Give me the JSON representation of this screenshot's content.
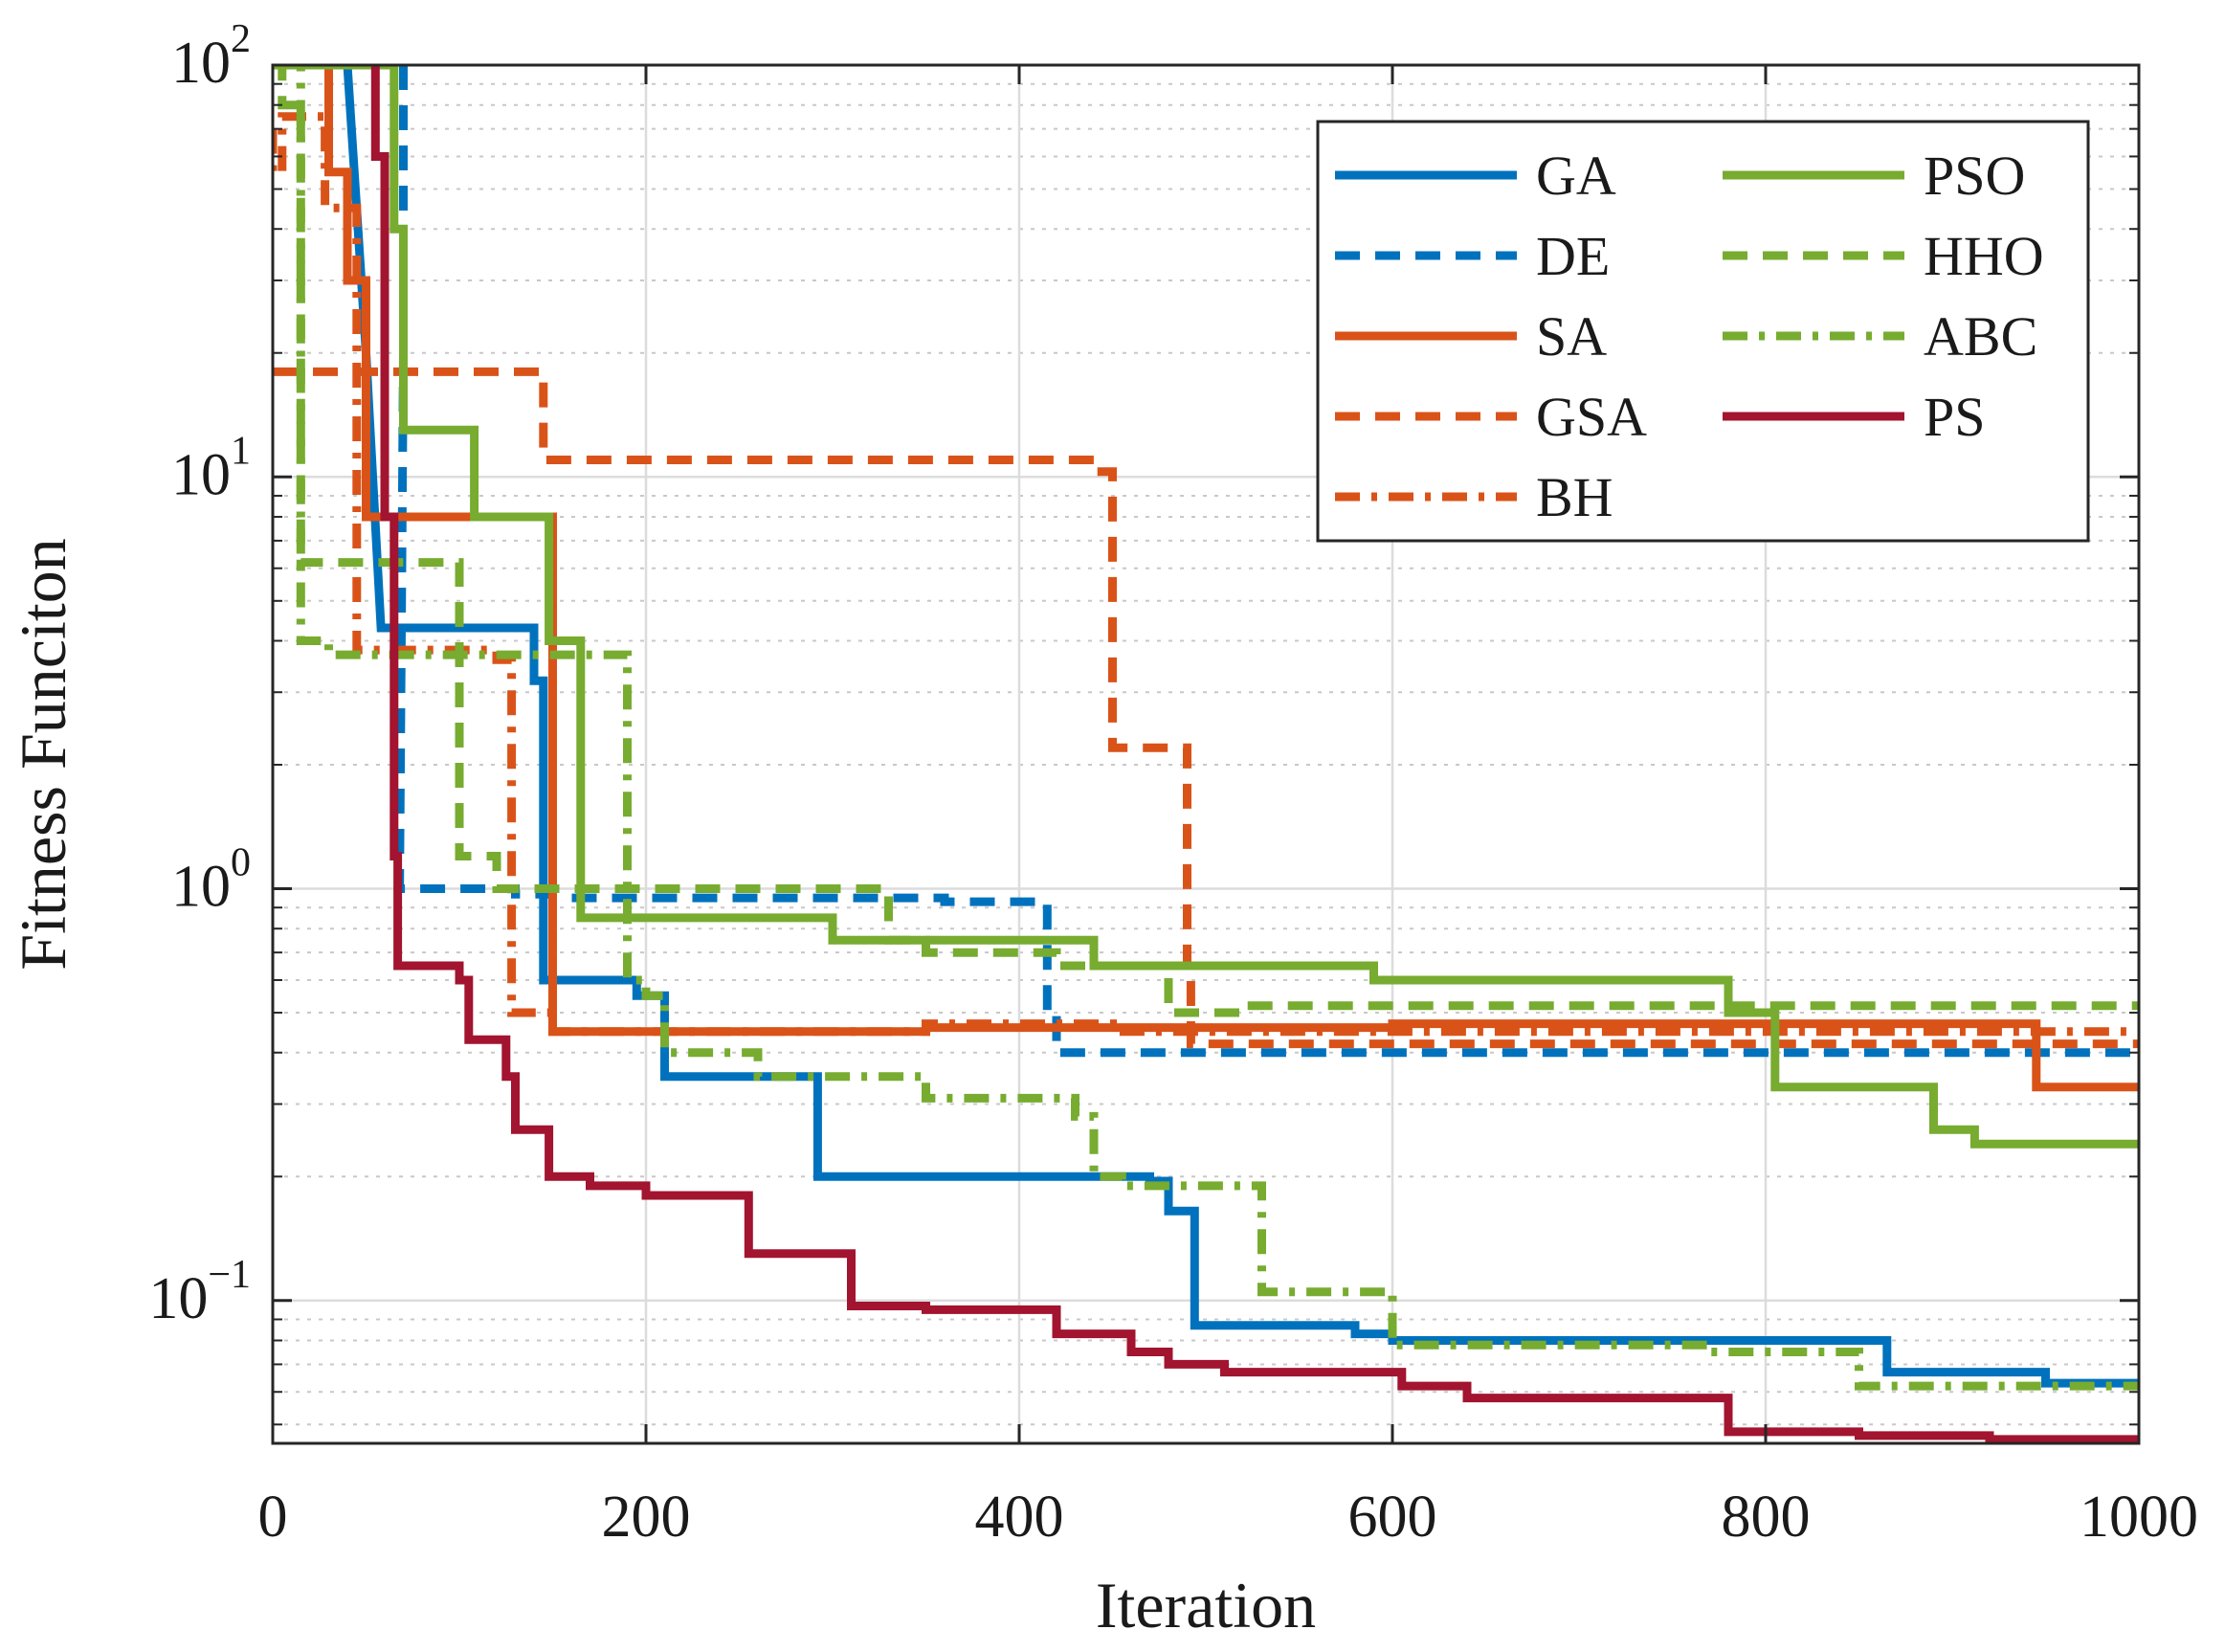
{
  "chart_data": {
    "type": "line",
    "title": "",
    "xlabel": "Iteration",
    "ylabel": "Fitness Funciton",
    "xlim": [
      0,
      1000
    ],
    "ylim": [
      0.045,
      100
    ],
    "yscale": "log",
    "grid": true,
    "legend_position": "top-right",
    "x_ticks": [
      {
        "value": 0,
        "label": "0"
      },
      {
        "value": 200,
        "label": "200"
      },
      {
        "value": 400,
        "label": "400"
      },
      {
        "value": 600,
        "label": "600"
      },
      {
        "value": 800,
        "label": "800"
      },
      {
        "value": 1000,
        "label": "1000"
      }
    ],
    "y_ticks": [
      {
        "value": 100,
        "base": "10",
        "exponent": "2"
      },
      {
        "value": 10,
        "base": "10",
        "exponent": "1"
      },
      {
        "value": 1,
        "base": "10",
        "exponent": "0"
      },
      {
        "value": 0.1,
        "base": "10",
        "exponent": "−1"
      }
    ],
    "series": [
      {
        "name": "GA",
        "color": "#0072BD",
        "dash": "solid",
        "points": [
          [
            40,
            100
          ],
          [
            50,
            20
          ],
          [
            58,
            4.3
          ],
          [
            140,
            4.3
          ],
          [
            140,
            3.2
          ],
          [
            145,
            3.2
          ],
          [
            145,
            0.6
          ],
          [
            195,
            0.6
          ],
          [
            195,
            0.55
          ],
          [
            210,
            0.55
          ],
          [
            210,
            0.35
          ],
          [
            292,
            0.35
          ],
          [
            292,
            0.2
          ],
          [
            470,
            0.2
          ],
          [
            470,
            0.195
          ],
          [
            480,
            0.195
          ],
          [
            480,
            0.165
          ],
          [
            494,
            0.165
          ],
          [
            494,
            0.087
          ],
          [
            580,
            0.087
          ],
          [
            580,
            0.083
          ],
          [
            600,
            0.083
          ],
          [
            600,
            0.08
          ],
          [
            865,
            0.08
          ],
          [
            865,
            0.067
          ],
          [
            950,
            0.067
          ],
          [
            950,
            0.063
          ],
          [
            1000,
            0.063
          ]
        ]
      },
      {
        "name": "DE",
        "color": "#0072BD",
        "dash": "dashed",
        "points": [
          [
            70,
            100
          ],
          [
            70,
            20
          ],
          [
            68,
            1.0
          ],
          [
            130,
            1.0
          ],
          [
            130,
            0.97
          ],
          [
            150,
            0.97
          ],
          [
            150,
            0.95
          ],
          [
            360,
            0.95
          ],
          [
            360,
            0.93
          ],
          [
            415,
            0.93
          ],
          [
            415,
            0.5
          ],
          [
            420,
            0.5
          ],
          [
            420,
            0.4
          ],
          [
            1000,
            0.4
          ]
        ]
      },
      {
        "name": "SA",
        "color": "#D95319",
        "dash": "solid",
        "points": [
          [
            30,
            100
          ],
          [
            30,
            55
          ],
          [
            40,
            55
          ],
          [
            40,
            30
          ],
          [
            50,
            30
          ],
          [
            50,
            8
          ],
          [
            150,
            8
          ],
          [
            150,
            0.45
          ],
          [
            350,
            0.45
          ],
          [
            350,
            0.46
          ],
          [
            600,
            0.46
          ],
          [
            600,
            0.47
          ],
          [
            945,
            0.47
          ],
          [
            945,
            0.33
          ],
          [
            1000,
            0.33
          ]
        ]
      },
      {
        "name": "GSA",
        "color": "#D95319",
        "dash": "dashed",
        "points": [
          [
            0,
            18
          ],
          [
            145,
            18
          ],
          [
            145,
            11
          ],
          [
            440,
            11
          ],
          [
            440,
            10.3
          ],
          [
            450,
            10.3
          ],
          [
            450,
            2.2
          ],
          [
            490,
            2.2
          ],
          [
            490,
            0.6
          ],
          [
            492,
            0.6
          ],
          [
            492,
            0.42
          ],
          [
            1000,
            0.42
          ]
        ]
      },
      {
        "name": "BH",
        "color": "#D95319",
        "dash": "dashdot",
        "points": [
          [
            0,
            70
          ],
          [
            0,
            55
          ],
          [
            5,
            55
          ],
          [
            5,
            75
          ],
          [
            28,
            75
          ],
          [
            28,
            45
          ],
          [
            45,
            45
          ],
          [
            45,
            3.8
          ],
          [
            120,
            3.8
          ],
          [
            120,
            3.6
          ],
          [
            128,
            3.6
          ],
          [
            128,
            0.5
          ],
          [
            150,
            0.5
          ],
          [
            150,
            0.45
          ],
          [
            350,
            0.45
          ],
          [
            350,
            0.47
          ],
          [
            450,
            0.47
          ],
          [
            450,
            0.45
          ],
          [
            1000,
            0.45
          ]
        ]
      },
      {
        "name": "PSO",
        "color": "#77AC30",
        "dash": "solid",
        "points": [
          [
            0,
            100
          ],
          [
            5,
            100
          ],
          [
            5,
            100
          ],
          [
            65,
            100
          ],
          [
            65,
            40
          ],
          [
            70,
            40
          ],
          [
            70,
            13
          ],
          [
            108,
            13
          ],
          [
            108,
            8
          ],
          [
            148,
            8
          ],
          [
            148,
            4
          ],
          [
            165,
            4
          ],
          [
            165,
            0.85
          ],
          [
            300,
            0.85
          ],
          [
            300,
            0.75
          ],
          [
            440,
            0.75
          ],
          [
            440,
            0.65
          ],
          [
            590,
            0.65
          ],
          [
            590,
            0.6
          ],
          [
            780,
            0.6
          ],
          [
            780,
            0.5
          ],
          [
            805,
            0.5
          ],
          [
            805,
            0.33
          ],
          [
            890,
            0.33
          ],
          [
            890,
            0.26
          ],
          [
            912,
            0.26
          ],
          [
            912,
            0.24
          ],
          [
            1000,
            0.24
          ]
        ]
      },
      {
        "name": "HHO",
        "color": "#77AC30",
        "dash": "dashed",
        "points": [
          [
            0,
            100
          ],
          [
            5,
            100
          ],
          [
            5,
            80
          ],
          [
            15,
            80
          ],
          [
            15,
            6.2
          ],
          [
            100,
            6.2
          ],
          [
            100,
            1.2
          ],
          [
            120,
            1.2
          ],
          [
            120,
            1.0
          ],
          [
            330,
            1.0
          ],
          [
            330,
            0.75
          ],
          [
            350,
            0.75
          ],
          [
            350,
            0.7
          ],
          [
            420,
            0.7
          ],
          [
            420,
            0.65
          ],
          [
            480,
            0.65
          ],
          [
            480,
            0.5
          ],
          [
            520,
            0.5
          ],
          [
            520,
            0.52
          ],
          [
            1000,
            0.52
          ]
        ]
      },
      {
        "name": "ABC",
        "color": "#77AC30",
        "dash": "dashdot",
        "points": [
          [
            5,
            100
          ],
          [
            15,
            100
          ],
          [
            15,
            4
          ],
          [
            30,
            4
          ],
          [
            30,
            3.7
          ],
          [
            190,
            3.7
          ],
          [
            190,
            0.6
          ],
          [
            200,
            0.6
          ],
          [
            200,
            0.55
          ],
          [
            210,
            0.55
          ],
          [
            210,
            0.4
          ],
          [
            260,
            0.4
          ],
          [
            260,
            0.35
          ],
          [
            350,
            0.35
          ],
          [
            350,
            0.31
          ],
          [
            430,
            0.31
          ],
          [
            430,
            0.28
          ],
          [
            440,
            0.28
          ],
          [
            440,
            0.2
          ],
          [
            455,
            0.2
          ],
          [
            455,
            0.19
          ],
          [
            530,
            0.19
          ],
          [
            530,
            0.105
          ],
          [
            600,
            0.105
          ],
          [
            600,
            0.078
          ],
          [
            770,
            0.078
          ],
          [
            770,
            0.075
          ],
          [
            850,
            0.075
          ],
          [
            850,
            0.062
          ],
          [
            1000,
            0.062
          ]
        ]
      },
      {
        "name": "PS",
        "color": "#A2142F",
        "dash": "solid",
        "points": [
          [
            55,
            100
          ],
          [
            55,
            60
          ],
          [
            60,
            60
          ],
          [
            60,
            8
          ],
          [
            65,
            8
          ],
          [
            65,
            1.2
          ],
          [
            67,
            1.2
          ],
          [
            67,
            0.65
          ],
          [
            100,
            0.65
          ],
          [
            100,
            0.6
          ],
          [
            105,
            0.6
          ],
          [
            105,
            0.43
          ],
          [
            125,
            0.43
          ],
          [
            125,
            0.35
          ],
          [
            130,
            0.35
          ],
          [
            130,
            0.26
          ],
          [
            148,
            0.26
          ],
          [
            148,
            0.2
          ],
          [
            170,
            0.2
          ],
          [
            170,
            0.19
          ],
          [
            200,
            0.19
          ],
          [
            200,
            0.18
          ],
          [
            255,
            0.18
          ],
          [
            255,
            0.13
          ],
          [
            310,
            0.13
          ],
          [
            310,
            0.097
          ],
          [
            350,
            0.097
          ],
          [
            350,
            0.095
          ],
          [
            420,
            0.095
          ],
          [
            420,
            0.083
          ],
          [
            460,
            0.083
          ],
          [
            460,
            0.075
          ],
          [
            480,
            0.075
          ],
          [
            480,
            0.07
          ],
          [
            510,
            0.07
          ],
          [
            510,
            0.067
          ],
          [
            605,
            0.067
          ],
          [
            605,
            0.062
          ],
          [
            640,
            0.062
          ],
          [
            640,
            0.058
          ],
          [
            780,
            0.058
          ],
          [
            780,
            0.048
          ],
          [
            850,
            0.048
          ],
          [
            850,
            0.047
          ],
          [
            920,
            0.047
          ],
          [
            920,
            0.046
          ],
          [
            1000,
            0.046
          ]
        ]
      }
    ]
  }
}
